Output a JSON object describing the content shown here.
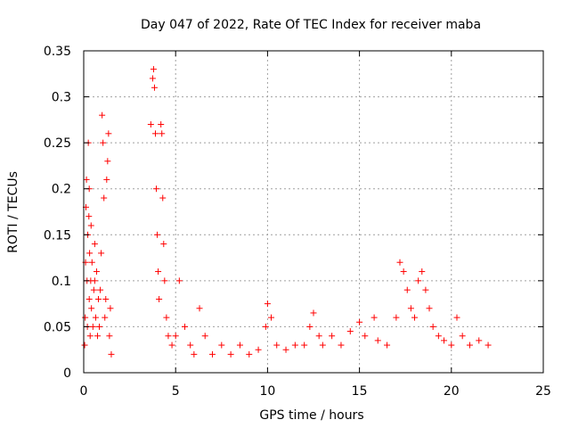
{
  "chart_data": {
    "type": "scatter",
    "title": "Day 047 of 2022, Rate Of TEC Index for receiver maba",
    "xlabel": "GPS time / hours",
    "ylabel": "ROTI / TECUs",
    "xlim": [
      0,
      25
    ],
    "ylim": [
      0,
      0.35
    ],
    "xticks": [
      0,
      5,
      10,
      15,
      20,
      25
    ],
    "yticks": [
      0,
      0.05,
      0.1,
      0.15,
      0.2,
      0.25,
      0.3,
      0.35
    ],
    "xtick_labels": [
      "0",
      "5",
      "10",
      "15",
      "20",
      "25"
    ],
    "ytick_labels": [
      "0",
      "0.05",
      "0.1",
      "0.15",
      "0.2",
      "0.25",
      "0.3",
      "0.35"
    ],
    "grid": true,
    "marker": "+",
    "color": "#ff0000",
    "series": [
      {
        "points": [
          [
            0.05,
            0.03
          ],
          [
            0.08,
            0.06
          ],
          [
            0.1,
            0.12
          ],
          [
            0.12,
            0.18
          ],
          [
            0.15,
            0.21
          ],
          [
            0.18,
            0.1
          ],
          [
            0.2,
            0.05
          ],
          [
            0.22,
            0.15
          ],
          [
            0.25,
            0.25
          ],
          [
            0.28,
            0.17
          ],
          [
            0.3,
            0.08
          ],
          [
            0.32,
            0.13
          ],
          [
            0.35,
            0.04
          ],
          [
            0.38,
            0.1
          ],
          [
            0.4,
            0.16
          ],
          [
            0.42,
            0.07
          ],
          [
            0.45,
            0.12
          ],
          [
            0.5,
            0.05
          ],
          [
            0.55,
            0.09
          ],
          [
            0.6,
            0.14
          ],
          [
            0.65,
            0.06
          ],
          [
            0.7,
            0.11
          ],
          [
            0.75,
            0.04
          ],
          [
            0.8,
            0.08
          ],
          [
            0.85,
            0.05
          ],
          [
            0.9,
            0.09
          ],
          [
            0.95,
            0.13
          ],
          [
            1.0,
            0.28
          ],
          [
            1.05,
            0.25
          ],
          [
            1.1,
            0.19
          ],
          [
            1.15,
            0.06
          ],
          [
            1.2,
            0.08
          ],
          [
            1.25,
            0.21
          ],
          [
            1.3,
            0.23
          ],
          [
            1.35,
            0.26
          ],
          [
            1.4,
            0.04
          ],
          [
            1.45,
            0.07
          ],
          [
            1.5,
            0.02
          ],
          [
            0.3,
            0.2
          ],
          [
            0.6,
            0.1
          ],
          [
            3.65,
            0.27
          ],
          [
            3.75,
            0.32
          ],
          [
            3.8,
            0.33
          ],
          [
            3.85,
            0.31
          ],
          [
            3.9,
            0.26
          ],
          [
            3.95,
            0.2
          ],
          [
            4.0,
            0.15
          ],
          [
            4.05,
            0.11
          ],
          [
            4.1,
            0.08
          ],
          [
            4.2,
            0.27
          ],
          [
            4.25,
            0.26
          ],
          [
            4.3,
            0.19
          ],
          [
            4.35,
            0.14
          ],
          [
            4.4,
            0.1
          ],
          [
            4.5,
            0.06
          ],
          [
            4.6,
            0.04
          ],
          [
            4.8,
            0.03
          ],
          [
            5.0,
            0.04
          ],
          [
            5.2,
            0.1
          ],
          [
            5.5,
            0.05
          ],
          [
            5.8,
            0.03
          ],
          [
            6.0,
            0.02
          ],
          [
            6.3,
            0.07
          ],
          [
            6.6,
            0.04
          ],
          [
            7.0,
            0.02
          ],
          [
            7.5,
            0.03
          ],
          [
            8.0,
            0.02
          ],
          [
            8.5,
            0.03
          ],
          [
            9.0,
            0.02
          ],
          [
            9.5,
            0.025
          ],
          [
            9.9,
            0.05
          ],
          [
            10.0,
            0.075
          ],
          [
            10.2,
            0.06
          ],
          [
            10.5,
            0.03
          ],
          [
            11.0,
            0.025
          ],
          [
            11.5,
            0.03
          ],
          [
            12.0,
            0.03
          ],
          [
            12.3,
            0.05
          ],
          [
            12.5,
            0.065
          ],
          [
            12.8,
            0.04
          ],
          [
            13.0,
            0.03
          ],
          [
            13.5,
            0.04
          ],
          [
            14.0,
            0.03
          ],
          [
            14.5,
            0.045
          ],
          [
            15.0,
            0.055
          ],
          [
            15.3,
            0.04
          ],
          [
            15.8,
            0.06
          ],
          [
            16.0,
            0.035
          ],
          [
            16.5,
            0.03
          ],
          [
            17.0,
            0.06
          ],
          [
            17.2,
            0.12
          ],
          [
            17.4,
            0.11
          ],
          [
            17.6,
            0.09
          ],
          [
            17.8,
            0.07
          ],
          [
            18.0,
            0.06
          ],
          [
            18.2,
            0.1
          ],
          [
            18.4,
            0.11
          ],
          [
            18.6,
            0.09
          ],
          [
            18.8,
            0.07
          ],
          [
            19.0,
            0.05
          ],
          [
            19.3,
            0.04
          ],
          [
            19.6,
            0.035
          ],
          [
            20.0,
            0.03
          ],
          [
            20.3,
            0.06
          ],
          [
            20.6,
            0.04
          ],
          [
            21.0,
            0.03
          ],
          [
            21.5,
            0.035
          ],
          [
            22.0,
            0.03
          ]
        ]
      }
    ]
  }
}
